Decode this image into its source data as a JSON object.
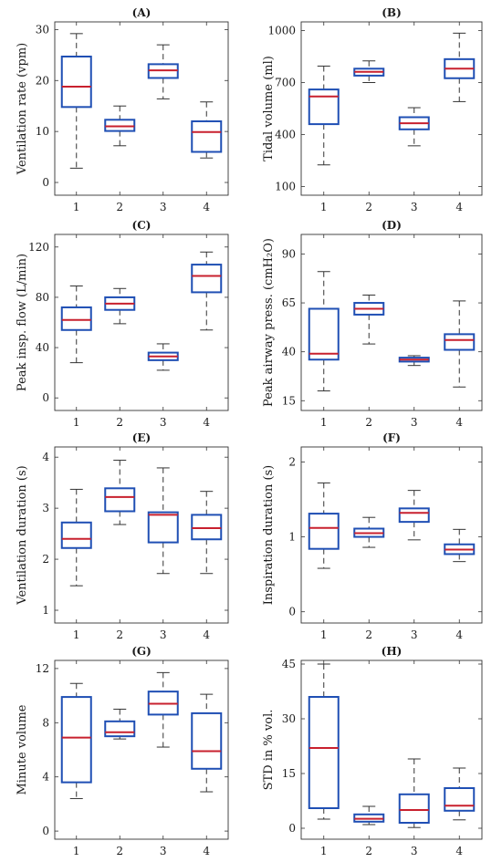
{
  "chart_data": [
    {
      "type": "box",
      "title": "(A)",
      "ylabel": "Ventilation rate (vpm)",
      "categories": [
        "1",
        "2",
        "3",
        "4"
      ],
      "ylim": [
        -2.5,
        31.5
      ],
      "yticks": [
        0,
        10,
        20,
        30
      ],
      "boxes": [
        {
          "whisker_low": 2.8,
          "q1": 14.8,
          "median": 18.8,
          "q3": 24.7,
          "whisker_high": 29.2
        },
        {
          "whisker_low": 7.2,
          "q1": 10.1,
          "median": 11.0,
          "q3": 12.3,
          "whisker_high": 15.0
        },
        {
          "whisker_low": 16.4,
          "q1": 20.5,
          "median": 22.0,
          "q3": 23.2,
          "whisker_high": 27.0
        },
        {
          "whisker_low": 4.8,
          "q1": 6.0,
          "median": 9.9,
          "q3": 12.0,
          "whisker_high": 15.8
        }
      ]
    },
    {
      "type": "box",
      "title": "(B)",
      "ylabel": "Tidal volume (ml)",
      "categories": [
        "1",
        "2",
        "3",
        "4"
      ],
      "ylim": [
        50,
        1050
      ],
      "yticks": [
        100,
        400,
        700,
        1000
      ],
      "boxes": [
        {
          "whisker_low": 225,
          "q1": 460,
          "median": 620,
          "q3": 660,
          "whisker_high": 795
        },
        {
          "whisker_low": 700,
          "q1": 740,
          "median": 762,
          "q3": 780,
          "whisker_high": 825
        },
        {
          "whisker_low": 335,
          "q1": 430,
          "median": 465,
          "q3": 500,
          "whisker_high": 555
        },
        {
          "whisker_low": 590,
          "q1": 725,
          "median": 780,
          "q3": 835,
          "whisker_high": 985
        }
      ]
    },
    {
      "type": "box",
      "title": "(C)",
      "ylabel": "Peak insp. flow (L/min)",
      "categories": [
        "1",
        "2",
        "3",
        "4"
      ],
      "ylim": [
        -10,
        130
      ],
      "yticks": [
        0,
        40,
        80,
        120
      ],
      "boxes": [
        {
          "whisker_low": 28,
          "q1": 54,
          "median": 62,
          "q3": 72,
          "whisker_high": 89
        },
        {
          "whisker_low": 59,
          "q1": 70,
          "median": 75,
          "q3": 80,
          "whisker_high": 87
        },
        {
          "whisker_low": 22,
          "q1": 30,
          "median": 33,
          "q3": 36,
          "whisker_high": 43
        },
        {
          "whisker_low": 54,
          "q1": 84,
          "median": 97,
          "q3": 106,
          "whisker_high": 116
        }
      ]
    },
    {
      "type": "box",
      "title": "(D)",
      "ylabel": "Peak airway press. (cmH₂O)",
      "categories": [
        "1",
        "2",
        "3",
        "4"
      ],
      "ylim": [
        10,
        100
      ],
      "yticks": [
        15,
        40,
        65,
        90
      ],
      "boxes": [
        {
          "whisker_low": 20,
          "q1": 36,
          "median": 39,
          "q3": 62,
          "whisker_high": 81
        },
        {
          "whisker_low": 44,
          "q1": 59,
          "median": 62,
          "q3": 65,
          "whisker_high": 69
        },
        {
          "whisker_low": 33,
          "q1": 35,
          "median": 36,
          "q3": 37,
          "whisker_high": 38
        },
        {
          "whisker_low": 22,
          "q1": 41,
          "median": 46,
          "q3": 49,
          "whisker_high": 66
        }
      ]
    },
    {
      "type": "box",
      "title": "(E)",
      "ylabel": "Ventilation duration (s)",
      "categories": [
        "1",
        "2",
        "3",
        "4"
      ],
      "ylim": [
        0.75,
        4.2
      ],
      "yticks": [
        1,
        2,
        3,
        4
      ],
      "boxes": [
        {
          "whisker_low": 1.48,
          "q1": 2.22,
          "median": 2.4,
          "q3": 2.72,
          "whisker_high": 3.37
        },
        {
          "whisker_low": 2.68,
          "q1": 2.94,
          "median": 3.22,
          "q3": 3.39,
          "whisker_high": 3.94
        },
        {
          "whisker_low": 1.72,
          "q1": 2.33,
          "median": 2.87,
          "q3": 2.92,
          "whisker_high": 3.79
        },
        {
          "whisker_low": 1.72,
          "q1": 2.39,
          "median": 2.61,
          "q3": 2.87,
          "whisker_high": 3.33
        }
      ]
    },
    {
      "type": "box",
      "title": "(F)",
      "ylabel": "Inspiration duration (s)",
      "categories": [
        "1",
        "2",
        "3",
        "4"
      ],
      "ylim": [
        -0.15,
        2.2
      ],
      "yticks": [
        0,
        1,
        2
      ],
      "boxes": [
        {
          "whisker_low": 0.58,
          "q1": 0.84,
          "median": 1.12,
          "q3": 1.31,
          "whisker_high": 1.72
        },
        {
          "whisker_low": 0.86,
          "q1": 1.0,
          "median": 1.05,
          "q3": 1.11,
          "whisker_high": 1.26
        },
        {
          "whisker_low": 0.96,
          "q1": 1.2,
          "median": 1.32,
          "q3": 1.38,
          "whisker_high": 1.62
        },
        {
          "whisker_low": 0.67,
          "q1": 0.77,
          "median": 0.83,
          "q3": 0.9,
          "whisker_high": 1.1
        }
      ]
    },
    {
      "type": "box",
      "title": "(G)",
      "ylabel": "Minute volume",
      "categories": [
        "1",
        "2",
        "3",
        "4"
      ],
      "ylim": [
        -0.6,
        12.6
      ],
      "yticks": [
        0,
        4,
        8,
        12
      ],
      "boxes": [
        {
          "whisker_low": 2.4,
          "q1": 3.6,
          "median": 6.9,
          "q3": 9.9,
          "whisker_high": 10.9
        },
        {
          "whisker_low": 6.8,
          "q1": 7.0,
          "median": 7.3,
          "q3": 8.1,
          "whisker_high": 9.0
        },
        {
          "whisker_low": 6.2,
          "q1": 8.6,
          "median": 9.4,
          "q3": 10.3,
          "whisker_high": 11.7
        },
        {
          "whisker_low": 2.9,
          "q1": 4.6,
          "median": 5.9,
          "q3": 8.7,
          "whisker_high": 10.1
        }
      ]
    },
    {
      "type": "box",
      "title": "(H)",
      "ylabel": "STD in % vol.",
      "categories": [
        "1",
        "2",
        "3",
        "4"
      ],
      "ylim": [
        -3,
        46
      ],
      "yticks": [
        0,
        15,
        30,
        45
      ],
      "boxes": [
        {
          "whisker_low": 2.5,
          "q1": 5.5,
          "median": 22.0,
          "q3": 36.0,
          "whisker_high": 45.0
        },
        {
          "whisker_low": 1.0,
          "q1": 1.8,
          "median": 2.6,
          "q3": 3.8,
          "whisker_high": 6.0
        },
        {
          "whisker_low": 0.2,
          "q1": 1.5,
          "median": 5.0,
          "q3": 9.3,
          "whisker_high": 19.0
        },
        {
          "whisker_low": 2.3,
          "q1": 4.8,
          "median": 6.2,
          "q3": 11.0,
          "whisker_high": 16.5
        }
      ]
    }
  ],
  "colors": {
    "box": "#1f4fb4",
    "median": "#c8202e",
    "whisker": "#333333",
    "axis": "#333333"
  }
}
